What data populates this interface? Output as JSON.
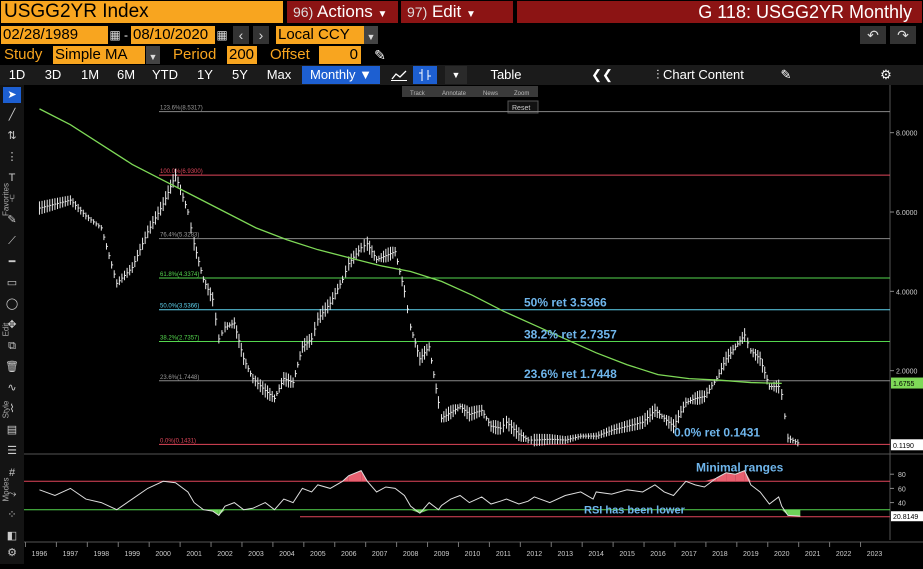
{
  "header": {
    "ticker": "USGG2YR Index",
    "actions_num": "96)",
    "actions_label": "Actions",
    "edit_num": "97)",
    "edit_label": "Edit",
    "title": "G 118: USGG2YR Monthly"
  },
  "range": {
    "start_date": "02/28/1989",
    "separator": "-",
    "end_date": "08/10/2020",
    "currency": "Local CCY"
  },
  "study": {
    "study_label": "Study",
    "study_value": "Simple MA",
    "period_label": "Period",
    "period_value": "200",
    "offset_label": "Offset",
    "offset_value": "0"
  },
  "toolbar": {
    "ranges": [
      "1D",
      "3D",
      "1M",
      "6M",
      "YTD",
      "1Y",
      "5Y",
      "Max"
    ],
    "frequency": "Monthly ▼",
    "table_label": "Table",
    "chart_content_label": "Chart Content"
  },
  "mini_tools": [
    "Track",
    "Annotate",
    "News",
    "Zoom"
  ],
  "reset_label": "Reset",
  "left_labels": {
    "favorites": "Favorites",
    "edit": "Edit",
    "style": "Style",
    "modes": "Modes"
  },
  "colors": {
    "accent_orange": "#f8a51f",
    "menu_red": "#8c1414",
    "selected_blue": "#1d5fd1",
    "ma_green": "#7ed957",
    "fib_red": "#e0465a",
    "fib_green": "#54d64e",
    "fib_cyan": "#5fd4f0",
    "annotation_blue": "#6fb6ec"
  },
  "chart_data": [
    {
      "type": "line",
      "title": "USGG2YR Monthly",
      "x": [
        "1996",
        "1997",
        "1998",
        "1999",
        "2000",
        "2001",
        "2002",
        "2003",
        "2004",
        "2005",
        "2006",
        "2007",
        "2008",
        "2009",
        "2010",
        "2011",
        "2012",
        "2013",
        "2014",
        "2015",
        "2016",
        "2017",
        "2018",
        "2019",
        "2020",
        "2021",
        "2022",
        "2023"
      ],
      "ylim": [
        0,
        9
      ],
      "y_ticks": [
        "8.0000",
        "6.0000",
        "4.0000",
        "2.0000"
      ],
      "series": [
        {
          "name": "USGG2YR",
          "points": [
            [
              1996.0,
              6.1
            ],
            [
              1996.5,
              6.2
            ],
            [
              1997.0,
              6.3
            ],
            [
              1997.5,
              5.9
            ],
            [
              1998.0,
              5.6
            ],
            [
              1998.5,
              4.2
            ],
            [
              1999.0,
              4.6
            ],
            [
              1999.5,
              5.5
            ],
            [
              2000.0,
              6.2
            ],
            [
              2000.4,
              6.93
            ],
            [
              2000.8,
              6.0
            ],
            [
              2001.0,
              5.2
            ],
            [
              2001.3,
              4.3
            ],
            [
              2001.6,
              3.8
            ],
            [
              2001.8,
              2.8
            ],
            [
              2002.0,
              3.1
            ],
            [
              2002.3,
              3.2
            ],
            [
              2002.6,
              2.3
            ],
            [
              2002.9,
              1.8
            ],
            [
              2003.3,
              1.5
            ],
            [
              2003.6,
              1.3
            ],
            [
              2003.9,
              1.8
            ],
            [
              2004.2,
              1.7
            ],
            [
              2004.5,
              2.6
            ],
            [
              2004.8,
              2.8
            ],
            [
              2005.0,
              3.3
            ],
            [
              2005.4,
              3.7
            ],
            [
              2005.8,
              4.3
            ],
            [
              2006.0,
              4.7
            ],
            [
              2006.4,
              5.1
            ],
            [
              2006.6,
              5.2
            ],
            [
              2006.9,
              4.8
            ],
            [
              2007.2,
              4.9
            ],
            [
              2007.5,
              5.0
            ],
            [
              2007.8,
              4.0
            ],
            [
              2008.0,
              3.1
            ],
            [
              2008.3,
              2.3
            ],
            [
              2008.6,
              2.6
            ],
            [
              2008.9,
              1.2
            ],
            [
              2009.0,
              0.8
            ],
            [
              2009.3,
              0.95
            ],
            [
              2009.6,
              1.1
            ],
            [
              2009.9,
              0.9
            ],
            [
              2010.3,
              1.0
            ],
            [
              2010.6,
              0.6
            ],
            [
              2010.9,
              0.55
            ],
            [
              2011.1,
              0.7
            ],
            [
              2011.5,
              0.4
            ],
            [
              2011.8,
              0.25
            ],
            [
              2012.0,
              0.25
            ],
            [
              2012.5,
              0.27
            ],
            [
              2013.0,
              0.25
            ],
            [
              2013.5,
              0.35
            ],
            [
              2014.0,
              0.35
            ],
            [
              2014.5,
              0.5
            ],
            [
              2015.0,
              0.6
            ],
            [
              2015.5,
              0.7
            ],
            [
              2015.9,
              1.0
            ],
            [
              2016.2,
              0.8
            ],
            [
              2016.5,
              0.6
            ],
            [
              2016.9,
              1.2
            ],
            [
              2017.2,
              1.3
            ],
            [
              2017.5,
              1.35
            ],
            [
              2017.9,
              1.8
            ],
            [
              2018.2,
              2.3
            ],
            [
              2018.5,
              2.6
            ],
            [
              2018.8,
              2.9
            ],
            [
              2019.0,
              2.5
            ],
            [
              2019.3,
              2.3
            ],
            [
              2019.6,
              1.6
            ],
            [
              2019.9,
              1.6
            ],
            [
              2020.0,
              1.4
            ],
            [
              2020.2,
              0.3
            ],
            [
              2020.6,
              0.15
            ]
          ]
        },
        {
          "name": "Simple MA 200",
          "points": [
            [
              1996.0,
              8.6
            ],
            [
              1997.0,
              8.2
            ],
            [
              1998.0,
              7.7
            ],
            [
              1999.0,
              7.2
            ],
            [
              2000.0,
              6.8
            ],
            [
              2001.0,
              6.4
            ],
            [
              2002.0,
              6.0
            ],
            [
              2003.0,
              5.6
            ],
            [
              2004.0,
              5.3
            ],
            [
              2005.0,
              5.05
            ],
            [
              2006.0,
              4.85
            ],
            [
              2007.0,
              4.65
            ],
            [
              2008.0,
              4.5
            ],
            [
              2009.0,
              4.25
            ],
            [
              2010.0,
              3.9
            ],
            [
              2011.0,
              3.5
            ],
            [
              2012.0,
              3.15
            ],
            [
              2013.0,
              2.8
            ],
            [
              2014.0,
              2.45
            ],
            [
              2015.0,
              2.15
            ],
            [
              2016.0,
              1.9
            ],
            [
              2017.0,
              1.8
            ],
            [
              2018.0,
              1.76
            ],
            [
              2019.0,
              1.7
            ],
            [
              2020.0,
              1.68
            ]
          ]
        }
      ],
      "last_values": [
        "1.6755",
        "0.1190"
      ],
      "fib_levels": [
        {
          "label": "123.6%(8.5317)",
          "value": 8.5317
        },
        {
          "label": "100.0%(6.9300)",
          "value": 6.93
        },
        {
          "label": "76.4%(5.3283)",
          "value": 5.3283
        },
        {
          "label": "61.8%(4.3374)",
          "value": 4.3374
        },
        {
          "label": "50.0%(3.5366)",
          "value": 3.5366
        },
        {
          "label": "38.2%(2.7357)",
          "value": 2.7357
        },
        {
          "label": "23.6%(1.7448)",
          "value": 1.7448
        },
        {
          "label": "0.0%(0.1431)",
          "value": 0.1431
        }
      ],
      "annotations": [
        "50% ret 3.5366",
        "38.2% ret 2.7357",
        "23.6% ret 1.7448",
        "0.0% ret 0.1431",
        "Minimal ranges"
      ]
    },
    {
      "type": "line",
      "title": "RSI",
      "ylim": [
        0,
        100
      ],
      "y_ticks": [
        "80",
        "60",
        "40"
      ],
      "last_value": "20.8149",
      "annotation": "RSI has been lower",
      "series": [
        {
          "name": "RSI",
          "points": [
            [
              1996.0,
              58
            ],
            [
              1996.5,
              50
            ],
            [
              1997.0,
              60
            ],
            [
              1997.5,
              45
            ],
            [
              1998.0,
              40
            ],
            [
              1998.5,
              30
            ],
            [
              1999.0,
              45
            ],
            [
              1999.5,
              60
            ],
            [
              2000.0,
              70
            ],
            [
              2000.4,
              68
            ],
            [
              2000.8,
              55
            ],
            [
              2001.0,
              40
            ],
            [
              2001.3,
              30
            ],
            [
              2001.6,
              28
            ],
            [
              2001.8,
              22
            ],
            [
              2002.0,
              35
            ],
            [
              2002.3,
              40
            ],
            [
              2002.6,
              30
            ],
            [
              2002.9,
              32
            ],
            [
              2003.3,
              40
            ],
            [
              2003.6,
              30
            ],
            [
              2003.9,
              45
            ],
            [
              2004.2,
              40
            ],
            [
              2004.5,
              60
            ],
            [
              2004.8,
              55
            ],
            [
              2005.0,
              65
            ],
            [
              2005.4,
              60
            ],
            [
              2005.8,
              70
            ],
            [
              2006.0,
              78
            ],
            [
              2006.4,
              85
            ],
            [
              2006.6,
              70
            ],
            [
              2006.9,
              55
            ],
            [
              2007.2,
              62
            ],
            [
              2007.5,
              60
            ],
            [
              2007.8,
              50
            ],
            [
              2008.0,
              35
            ],
            [
              2008.3,
              25
            ],
            [
              2008.6,
              40
            ],
            [
              2008.9,
              30
            ],
            [
              2009.0,
              36
            ],
            [
              2009.3,
              45
            ],
            [
              2009.6,
              50
            ],
            [
              2009.9,
              40
            ],
            [
              2010.3,
              48
            ],
            [
              2010.6,
              38
            ],
            [
              2010.9,
              42
            ],
            [
              2011.1,
              45
            ],
            [
              2011.5,
              38
            ],
            [
              2011.8,
              42
            ],
            [
              2012.0,
              48
            ],
            [
              2012.5,
              40
            ],
            [
              2013.0,
              50
            ],
            [
              2013.5,
              55
            ],
            [
              2013.9,
              45
            ],
            [
              2014.0,
              55
            ],
            [
              2014.5,
              52
            ],
            [
              2015.0,
              58
            ],
            [
              2015.5,
              55
            ],
            [
              2015.9,
              65
            ],
            [
              2016.2,
              55
            ],
            [
              2016.5,
              50
            ],
            [
              2016.9,
              70
            ],
            [
              2017.2,
              65
            ],
            [
              2017.5,
              62
            ],
            [
              2017.9,
              75
            ],
            [
              2018.2,
              82
            ],
            [
              2018.5,
              80
            ],
            [
              2018.8,
              85
            ],
            [
              2019.0,
              65
            ],
            [
              2019.3,
              55
            ],
            [
              2019.6,
              38
            ],
            [
              2019.9,
              48
            ],
            [
              2020.0,
              35
            ],
            [
              2020.2,
              22
            ],
            [
              2020.6,
              21
            ]
          ]
        }
      ]
    }
  ]
}
